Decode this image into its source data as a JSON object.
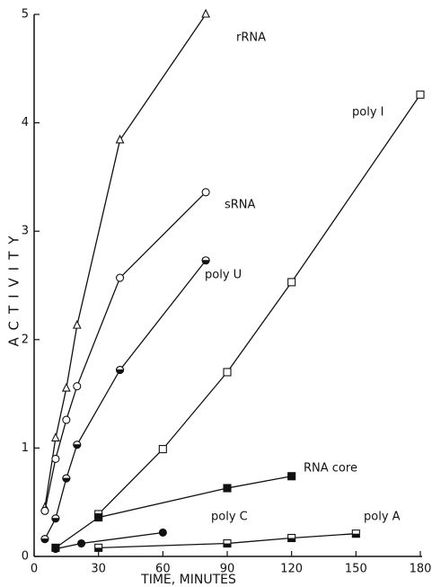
{
  "chart_data": {
    "type": "scatter-line",
    "xlabel": "TIME, MINUTES",
    "ylabel": "ACTIVITY",
    "xlim": [
      0,
      180
    ],
    "ylim": [
      0,
      5
    ],
    "xticks": [
      0,
      30,
      60,
      90,
      120,
      150,
      180
    ],
    "yticks": [
      0,
      1,
      2,
      3,
      4,
      5
    ],
    "series": [
      {
        "name": "rRNA",
        "marker": "triangle-open",
        "x": [
          5,
          10,
          15,
          20,
          40,
          80
        ],
        "values": [
          0.45,
          1.09,
          1.55,
          2.13,
          3.84,
          5.0
        ]
      },
      {
        "name": "sRNA",
        "marker": "circle-open",
        "x": [
          5,
          10,
          15,
          20,
          40,
          80
        ],
        "values": [
          0.42,
          0.9,
          1.26,
          1.57,
          2.57,
          3.36
        ]
      },
      {
        "name": "poly U",
        "marker": "circle-half",
        "x": [
          5,
          10,
          15,
          20,
          40,
          80
        ],
        "values": [
          0.16,
          0.35,
          0.72,
          1.03,
          1.72,
          2.73
        ]
      },
      {
        "name": "poly I",
        "marker": "square-open",
        "x": [
          30,
          60,
          90,
          120,
          180
        ],
        "values": [
          0.39,
          0.99,
          1.7,
          2.53,
          4.26
        ]
      },
      {
        "name": "RNA core",
        "marker": "square-filled",
        "x": [
          10,
          30,
          90,
          120
        ],
        "values": [
          0.08,
          0.36,
          0.63,
          0.74
        ]
      },
      {
        "name": "poly C",
        "marker": "circle-filled",
        "x": [
          10,
          22,
          60
        ],
        "values": [
          0.07,
          0.12,
          0.22
        ]
      },
      {
        "name": "poly A",
        "marker": "square-half",
        "x": [
          30,
          90,
          120,
          150
        ],
        "values": [
          0.08,
          0.12,
          0.17,
          0.21
        ]
      }
    ]
  }
}
